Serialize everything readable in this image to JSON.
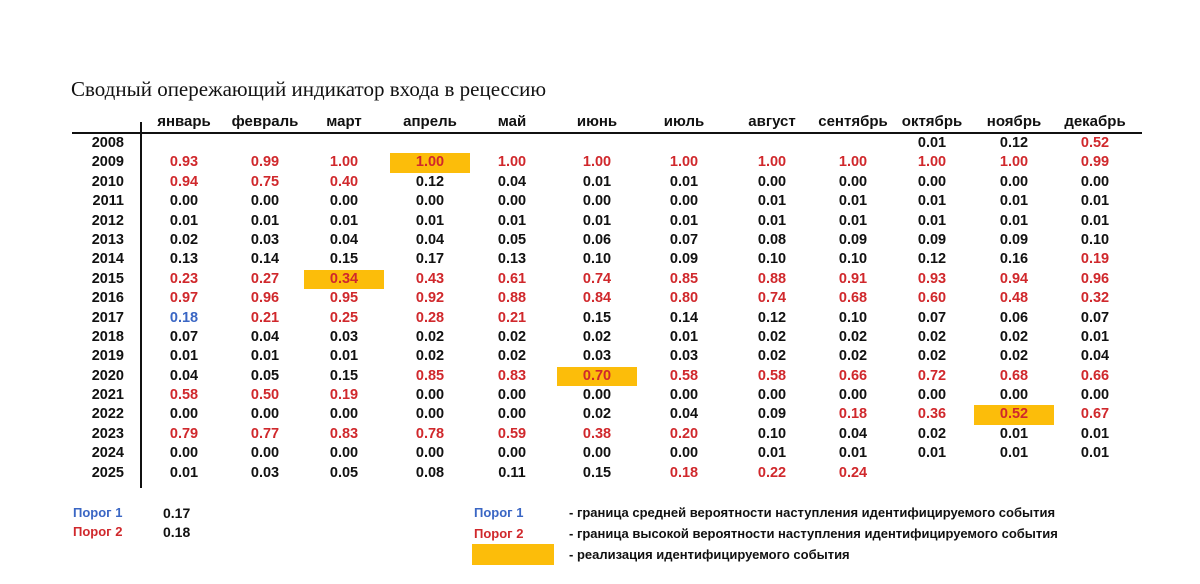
{
  "title": "Сводный опережающий индикатор входа в рецессию",
  "months": [
    "январь",
    "февраль",
    "март",
    "апрель",
    "май",
    "июнь",
    "июль",
    "август",
    "сентябрь",
    "октябрь",
    "ноябрь",
    "декабрь"
  ],
  "colors": {
    "red": "#d0282c",
    "blue": "#3a66c4",
    "highlight": "#fcbd0a",
    "black": "#111111"
  },
  "rows": [
    {
      "year": "2008",
      "values": [
        "",
        "",
        "",
        "",
        "",
        "",
        "",
        "",
        "",
        "0.01",
        "0.12",
        "0.52"
      ],
      "styles": [
        "",
        "",
        "",
        "",
        "",
        "",
        "",
        "",
        "",
        "",
        "",
        "red"
      ]
    },
    {
      "year": "2009",
      "values": [
        "0.93",
        "0.99",
        "1.00",
        "1.00",
        "1.00",
        "1.00",
        "1.00",
        "1.00",
        "1.00",
        "1.00",
        "1.00",
        "0.99"
      ],
      "styles": [
        "red",
        "red",
        "red",
        "red hl",
        "red",
        "red",
        "red",
        "red",
        "red",
        "red",
        "red",
        "red"
      ]
    },
    {
      "year": "2010",
      "values": [
        "0.94",
        "0.75",
        "0.40",
        "0.12",
        "0.04",
        "0.01",
        "0.01",
        "0.00",
        "0.00",
        "0.00",
        "0.00",
        "0.00"
      ],
      "styles": [
        "red",
        "red",
        "red",
        "",
        "",
        "",
        "",
        "",
        "",
        "",
        "",
        ""
      ]
    },
    {
      "year": "2011",
      "values": [
        "0.00",
        "0.00",
        "0.00",
        "0.00",
        "0.00",
        "0.00",
        "0.00",
        "0.01",
        "0.01",
        "0.01",
        "0.01",
        "0.01"
      ],
      "styles": [
        "",
        "",
        "",
        "",
        "",
        "",
        "",
        "",
        "",
        "",
        "",
        ""
      ]
    },
    {
      "year": "2012",
      "values": [
        "0.01",
        "0.01",
        "0.01",
        "0.01",
        "0.01",
        "0.01",
        "0.01",
        "0.01",
        "0.01",
        "0.01",
        "0.01",
        "0.01"
      ],
      "styles": [
        "",
        "",
        "",
        "",
        "",
        "",
        "",
        "",
        "",
        "",
        "",
        ""
      ]
    },
    {
      "year": "2013",
      "values": [
        "0.02",
        "0.03",
        "0.04",
        "0.04",
        "0.05",
        "0.06",
        "0.07",
        "0.08",
        "0.09",
        "0.09",
        "0.09",
        "0.10"
      ],
      "styles": [
        "",
        "",
        "",
        "",
        "",
        "",
        "",
        "",
        "",
        "",
        "",
        ""
      ]
    },
    {
      "year": "2014",
      "values": [
        "0.13",
        "0.14",
        "0.15",
        "0.17",
        "0.13",
        "0.10",
        "0.09",
        "0.10",
        "0.10",
        "0.12",
        "0.16",
        "0.19"
      ],
      "styles": [
        "",
        "",
        "",
        "",
        "",
        "",
        "",
        "",
        "",
        "",
        "",
        "red"
      ]
    },
    {
      "year": "2015",
      "values": [
        "0.23",
        "0.27",
        "0.34",
        "0.43",
        "0.61",
        "0.74",
        "0.85",
        "0.88",
        "0.91",
        "0.93",
        "0.94",
        "0.96"
      ],
      "styles": [
        "red",
        "red",
        "red hl",
        "red",
        "red",
        "red",
        "red",
        "red",
        "red",
        "red",
        "red",
        "red"
      ]
    },
    {
      "year": "2016",
      "values": [
        "0.97",
        "0.96",
        "0.95",
        "0.92",
        "0.88",
        "0.84",
        "0.80",
        "0.74",
        "0.68",
        "0.60",
        "0.48",
        "0.32"
      ],
      "styles": [
        "red",
        "red",
        "red",
        "red",
        "red",
        "red",
        "red",
        "red",
        "red",
        "red",
        "red",
        "red"
      ]
    },
    {
      "year": "2017",
      "values": [
        "0.18",
        "0.21",
        "0.25",
        "0.28",
        "0.21",
        "0.15",
        "0.14",
        "0.12",
        "0.10",
        "0.07",
        "0.06",
        "0.07"
      ],
      "styles": [
        "blue",
        "red",
        "red",
        "red",
        "red",
        "",
        "",
        "",
        "",
        "",
        "",
        ""
      ]
    },
    {
      "year": "2018",
      "values": [
        "0.07",
        "0.04",
        "0.03",
        "0.02",
        "0.02",
        "0.02",
        "0.01",
        "0.02",
        "0.02",
        "0.02",
        "0.02",
        "0.01"
      ],
      "styles": [
        "",
        "",
        "",
        "",
        "",
        "",
        "",
        "",
        "",
        "",
        "",
        ""
      ]
    },
    {
      "year": "2019",
      "values": [
        "0.01",
        "0.01",
        "0.01",
        "0.02",
        "0.02",
        "0.03",
        "0.03",
        "0.02",
        "0.02",
        "0.02",
        "0.02",
        "0.04"
      ],
      "styles": [
        "",
        "",
        "",
        "",
        "",
        "",
        "",
        "",
        "",
        "",
        "",
        ""
      ]
    },
    {
      "year": "2020",
      "values": [
        "0.04",
        "0.05",
        "0.15",
        "0.85",
        "0.83",
        "0.70",
        "0.58",
        "0.58",
        "0.66",
        "0.72",
        "0.68",
        "0.66"
      ],
      "styles": [
        "",
        "",
        "",
        "red",
        "red",
        "red hl",
        "red",
        "red",
        "red",
        "red",
        "red",
        "red"
      ]
    },
    {
      "year": "2021",
      "values": [
        "0.58",
        "0.50",
        "0.19",
        "0.00",
        "0.00",
        "0.00",
        "0.00",
        "0.00",
        "0.00",
        "0.00",
        "0.00",
        "0.00"
      ],
      "styles": [
        "red",
        "red",
        "red",
        "",
        "",
        "",
        "",
        "",
        "",
        "",
        "",
        ""
      ]
    },
    {
      "year": "2022",
      "values": [
        "0.00",
        "0.00",
        "0.00",
        "0.00",
        "0.00",
        "0.02",
        "0.04",
        "0.09",
        "0.18",
        "0.36",
        "0.52",
        "0.67"
      ],
      "styles": [
        "",
        "",
        "",
        "",
        "",
        "",
        "",
        "",
        "red",
        "red",
        "red hl",
        "red"
      ]
    },
    {
      "year": "2023",
      "values": [
        "0.79",
        "0.77",
        "0.83",
        "0.78",
        "0.59",
        "0.38",
        "0.20",
        "0.10",
        "0.04",
        "0.02",
        "0.01",
        "0.01"
      ],
      "styles": [
        "red",
        "red",
        "red",
        "red",
        "red",
        "red",
        "red",
        "",
        "",
        "",
        "",
        ""
      ]
    },
    {
      "year": "2024",
      "values": [
        "0.00",
        "0.00",
        "0.00",
        "0.00",
        "0.00",
        "0.00",
        "0.00",
        "0.01",
        "0.01",
        "0.01",
        "0.01",
        "0.01"
      ],
      "styles": [
        "",
        "",
        "",
        "",
        "",
        "",
        "",
        "",
        "",
        "",
        "",
        ""
      ]
    },
    {
      "year": "2025",
      "values": [
        "0.01",
        "0.03",
        "0.05",
        "0.08",
        "0.11",
        "0.15",
        "0.18",
        "0.22",
        "0.24",
        "",
        "",
        ""
      ],
      "styles": [
        "",
        "",
        "",
        "",
        "",
        "",
        "red",
        "red",
        "red",
        "",
        "",
        ""
      ]
    }
  ],
  "thresholds": [
    {
      "label": "Порог 1",
      "value": "0.17",
      "color": "blue"
    },
    {
      "label": "Порог 2",
      "value": "0.18",
      "color": "red"
    }
  ],
  "legend": [
    {
      "label": "Порог 1",
      "color": "blue",
      "description": "-   граница средней вероятности наступления идентифицируемого события"
    },
    {
      "label": "Порог 2",
      "color": "red",
      "description": "-   граница высокой вероятности наступления идентифицируемого события"
    },
    {
      "label": "",
      "color": "highlight",
      "description": "-   реализация идентифицируемого события"
    }
  ]
}
